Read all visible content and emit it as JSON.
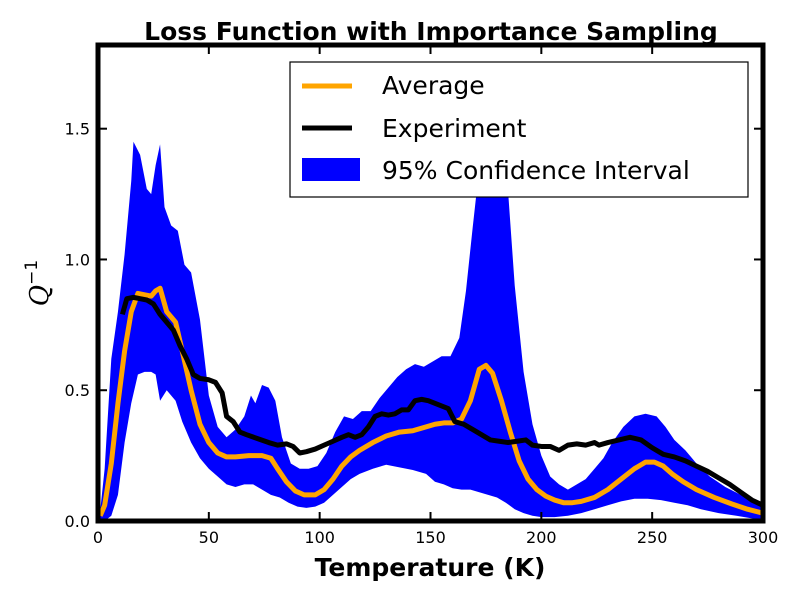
{
  "chart_data": {
    "type": "line",
    "title": "Loss Function with Importance Sampling",
    "xlabel": "Temperature (K)",
    "ylabel": "Q",
    "ylabel_exponent": "−1",
    "xlim": [
      0,
      300
    ],
    "ylim": [
      0,
      1.82
    ],
    "x_ticks": [
      0,
      50,
      100,
      150,
      200,
      250,
      300
    ],
    "x_tick_labels": [
      "0",
      "50",
      "100",
      "150",
      "200",
      "250",
      "300"
    ],
    "y_ticks": [
      0,
      0.5,
      1.0,
      1.5
    ],
    "y_tick_labels": [
      "0.0",
      "0.5",
      "1.0",
      "1.5"
    ],
    "grid": false,
    "legend_position": "top-right",
    "series": [
      {
        "name": "Average",
        "kind": "line",
        "color": "#FFA500",
        "points": [
          [
            1,
            0.02
          ],
          [
            3,
            0.06
          ],
          [
            6,
            0.22
          ],
          [
            9,
            0.45
          ],
          [
            12,
            0.65
          ],
          [
            15,
            0.8
          ],
          [
            18,
            0.87
          ],
          [
            21,
            0.865
          ],
          [
            24,
            0.86
          ],
          [
            26,
            0.88
          ],
          [
            28,
            0.89
          ],
          [
            31,
            0.8
          ],
          [
            35,
            0.76
          ],
          [
            38,
            0.65
          ],
          [
            42,
            0.5
          ],
          [
            46,
            0.37
          ],
          [
            50,
            0.3
          ],
          [
            54,
            0.26
          ],
          [
            58,
            0.245
          ],
          [
            62,
            0.245
          ],
          [
            68,
            0.25
          ],
          [
            74,
            0.25
          ],
          [
            78,
            0.24
          ],
          [
            81,
            0.2
          ],
          [
            85,
            0.15
          ],
          [
            89,
            0.115
          ],
          [
            93,
            0.1
          ],
          [
            98,
            0.1
          ],
          [
            102,
            0.12
          ],
          [
            106,
            0.16
          ],
          [
            110,
            0.21
          ],
          [
            114,
            0.245
          ],
          [
            118,
            0.27
          ],
          [
            124,
            0.3
          ],
          [
            130,
            0.325
          ],
          [
            136,
            0.34
          ],
          [
            142,
            0.345
          ],
          [
            148,
            0.36
          ],
          [
            152,
            0.37
          ],
          [
            156,
            0.375
          ],
          [
            160,
            0.375
          ],
          [
            164,
            0.39
          ],
          [
            168,
            0.46
          ],
          [
            172,
            0.58
          ],
          [
            175,
            0.595
          ],
          [
            178,
            0.565
          ],
          [
            182,
            0.46
          ],
          [
            186,
            0.34
          ],
          [
            190,
            0.23
          ],
          [
            194,
            0.16
          ],
          [
            198,
            0.12
          ],
          [
            202,
            0.095
          ],
          [
            206,
            0.08
          ],
          [
            210,
            0.07
          ],
          [
            214,
            0.07
          ],
          [
            218,
            0.075
          ],
          [
            224,
            0.09
          ],
          [
            230,
            0.12
          ],
          [
            236,
            0.16
          ],
          [
            242,
            0.2
          ],
          [
            247,
            0.225
          ],
          [
            251,
            0.225
          ],
          [
            255,
            0.21
          ],
          [
            259,
            0.18
          ],
          [
            264,
            0.15
          ],
          [
            270,
            0.12
          ],
          [
            278,
            0.09
          ],
          [
            286,
            0.065
          ],
          [
            293,
            0.045
          ],
          [
            300,
            0.03
          ]
        ]
      },
      {
        "name": "Experiment",
        "kind": "line",
        "color": "#000000",
        "points": [
          [
            11,
            0.79
          ],
          [
            13,
            0.85
          ],
          [
            16,
            0.855
          ],
          [
            19,
            0.85
          ],
          [
            22,
            0.845
          ],
          [
            25,
            0.83
          ],
          [
            28,
            0.79
          ],
          [
            31,
            0.76
          ],
          [
            34,
            0.73
          ],
          [
            37,
            0.67
          ],
          [
            40,
            0.62
          ],
          [
            43,
            0.56
          ],
          [
            46,
            0.545
          ],
          [
            50,
            0.54
          ],
          [
            53,
            0.53
          ],
          [
            56,
            0.49
          ],
          [
            58,
            0.4
          ],
          [
            61,
            0.38
          ],
          [
            64,
            0.34
          ],
          [
            67,
            0.33
          ],
          [
            72,
            0.315
          ],
          [
            77,
            0.3
          ],
          [
            81,
            0.29
          ],
          [
            85,
            0.295
          ],
          [
            88,
            0.285
          ],
          [
            91,
            0.26
          ],
          [
            94,
            0.265
          ],
          [
            98,
            0.275
          ],
          [
            102,
            0.29
          ],
          [
            106,
            0.305
          ],
          [
            110,
            0.32
          ],
          [
            113,
            0.33
          ],
          [
            116,
            0.32
          ],
          [
            119,
            0.33
          ],
          [
            122,
            0.36
          ],
          [
            125,
            0.4
          ],
          [
            128,
            0.41
          ],
          [
            131,
            0.405
          ],
          [
            134,
            0.41
          ],
          [
            137,
            0.425
          ],
          [
            140,
            0.425
          ],
          [
            143,
            0.46
          ],
          [
            146,
            0.465
          ],
          [
            149,
            0.46
          ],
          [
            152,
            0.45
          ],
          [
            155,
            0.44
          ],
          [
            158,
            0.43
          ],
          [
            161,
            0.38
          ],
          [
            165,
            0.37
          ],
          [
            169,
            0.35
          ],
          [
            173,
            0.33
          ],
          [
            177,
            0.31
          ],
          [
            181,
            0.305
          ],
          [
            185,
            0.3
          ],
          [
            189,
            0.305
          ],
          [
            193,
            0.31
          ],
          [
            196,
            0.29
          ],
          [
            200,
            0.285
          ],
          [
            204,
            0.285
          ],
          [
            208,
            0.27
          ],
          [
            212,
            0.29
          ],
          [
            216,
            0.295
          ],
          [
            220,
            0.29
          ],
          [
            224,
            0.3
          ],
          [
            226,
            0.29
          ],
          [
            230,
            0.3
          ],
          [
            235,
            0.31
          ],
          [
            240,
            0.32
          ],
          [
            245,
            0.31
          ],
          [
            250,
            0.28
          ],
          [
            255,
            0.255
          ],
          [
            260,
            0.245
          ],
          [
            265,
            0.23
          ],
          [
            270,
            0.21
          ],
          [
            275,
            0.19
          ],
          [
            280,
            0.165
          ],
          [
            285,
            0.14
          ],
          [
            290,
            0.11
          ],
          [
            295,
            0.08
          ],
          [
            300,
            0.06
          ]
        ]
      },
      {
        "name": "95% Confidence Interval",
        "kind": "band",
        "color": "#0000FF",
        "upper": [
          [
            1,
            0.04
          ],
          [
            3,
            0.2
          ],
          [
            6,
            0.62
          ],
          [
            9,
            0.8
          ],
          [
            12,
            1.02
          ],
          [
            15,
            1.3
          ],
          [
            16,
            1.45
          ],
          [
            19,
            1.4
          ],
          [
            22,
            1.27
          ],
          [
            24,
            1.25
          ],
          [
            26,
            1.36
          ],
          [
            28,
            1.44
          ],
          [
            30,
            1.2
          ],
          [
            33,
            1.13
          ],
          [
            36,
            1.11
          ],
          [
            39,
            0.98
          ],
          [
            42,
            0.95
          ],
          [
            46,
            0.77
          ],
          [
            50,
            0.48
          ],
          [
            54,
            0.36
          ],
          [
            58,
            0.32
          ],
          [
            62,
            0.35
          ],
          [
            66,
            0.4
          ],
          [
            69,
            0.48
          ],
          [
            71,
            0.45
          ],
          [
            74,
            0.52
          ],
          [
            77,
            0.51
          ],
          [
            80,
            0.46
          ],
          [
            83,
            0.32
          ],
          [
            87,
            0.22
          ],
          [
            91,
            0.2
          ],
          [
            95,
            0.2
          ],
          [
            99,
            0.21
          ],
          [
            103,
            0.26
          ],
          [
            107,
            0.34
          ],
          [
            111,
            0.4
          ],
          [
            115,
            0.39
          ],
          [
            119,
            0.42
          ],
          [
            123,
            0.42
          ],
          [
            127,
            0.47
          ],
          [
            131,
            0.51
          ],
          [
            135,
            0.55
          ],
          [
            139,
            0.58
          ],
          [
            143,
            0.6
          ],
          [
            147,
            0.59
          ],
          [
            151,
            0.61
          ],
          [
            155,
            0.63
          ],
          [
            159,
            0.63
          ],
          [
            163,
            0.7
          ],
          [
            166,
            0.88
          ],
          [
            169,
            1.12
          ],
          [
            172,
            1.35
          ],
          [
            175,
            1.46
          ],
          [
            179,
            1.55
          ],
          [
            183,
            1.5
          ],
          [
            185,
            1.26
          ],
          [
            188,
            0.9
          ],
          [
            192,
            0.57
          ],
          [
            196,
            0.37
          ],
          [
            200,
            0.25
          ],
          [
            204,
            0.17
          ],
          [
            208,
            0.14
          ],
          [
            212,
            0.12
          ],
          [
            216,
            0.14
          ],
          [
            220,
            0.16
          ],
          [
            224,
            0.2
          ],
          [
            228,
            0.24
          ],
          [
            232,
            0.3
          ],
          [
            237,
            0.36
          ],
          [
            242,
            0.4
          ],
          [
            247,
            0.41
          ],
          [
            252,
            0.4
          ],
          [
            256,
            0.36
          ],
          [
            260,
            0.31
          ],
          [
            265,
            0.27
          ],
          [
            270,
            0.22
          ],
          [
            276,
            0.17
          ],
          [
            283,
            0.13
          ],
          [
            290,
            0.1
          ],
          [
            296,
            0.07
          ],
          [
            300,
            0.06
          ]
        ],
        "lower": [
          [
            1,
            0.0
          ],
          [
            3,
            0.0
          ],
          [
            6,
            0.02
          ],
          [
            9,
            0.1
          ],
          [
            12,
            0.3
          ],
          [
            15,
            0.45
          ],
          [
            18,
            0.56
          ],
          [
            21,
            0.57
          ],
          [
            24,
            0.57
          ],
          [
            26,
            0.56
          ],
          [
            28,
            0.46
          ],
          [
            31,
            0.5
          ],
          [
            35,
            0.46
          ],
          [
            38,
            0.38
          ],
          [
            42,
            0.3
          ],
          [
            46,
            0.24
          ],
          [
            50,
            0.2
          ],
          [
            54,
            0.17
          ],
          [
            58,
            0.14
          ],
          [
            62,
            0.13
          ],
          [
            66,
            0.14
          ],
          [
            70,
            0.14
          ],
          [
            74,
            0.12
          ],
          [
            78,
            0.1
          ],
          [
            82,
            0.09
          ],
          [
            86,
            0.07
          ],
          [
            90,
            0.055
          ],
          [
            94,
            0.05
          ],
          [
            98,
            0.055
          ],
          [
            102,
            0.07
          ],
          [
            106,
            0.1
          ],
          [
            110,
            0.13
          ],
          [
            114,
            0.16
          ],
          [
            118,
            0.18
          ],
          [
            124,
            0.2
          ],
          [
            130,
            0.215
          ],
          [
            136,
            0.205
          ],
          [
            142,
            0.195
          ],
          [
            148,
            0.18
          ],
          [
            152,
            0.15
          ],
          [
            156,
            0.14
          ],
          [
            160,
            0.125
          ],
          [
            164,
            0.12
          ],
          [
            168,
            0.12
          ],
          [
            172,
            0.11
          ],
          [
            176,
            0.1
          ],
          [
            180,
            0.09
          ],
          [
            184,
            0.07
          ],
          [
            188,
            0.045
          ],
          [
            192,
            0.03
          ],
          [
            196,
            0.02
          ],
          [
            200,
            0.015
          ],
          [
            206,
            0.015
          ],
          [
            212,
            0.02
          ],
          [
            218,
            0.03
          ],
          [
            224,
            0.045
          ],
          [
            230,
            0.06
          ],
          [
            236,
            0.075
          ],
          [
            242,
            0.085
          ],
          [
            248,
            0.085
          ],
          [
            254,
            0.08
          ],
          [
            260,
            0.07
          ],
          [
            266,
            0.06
          ],
          [
            272,
            0.045
          ],
          [
            280,
            0.03
          ],
          [
            288,
            0.02
          ],
          [
            295,
            0.01
          ],
          [
            300,
            0.005
          ]
        ]
      }
    ]
  }
}
